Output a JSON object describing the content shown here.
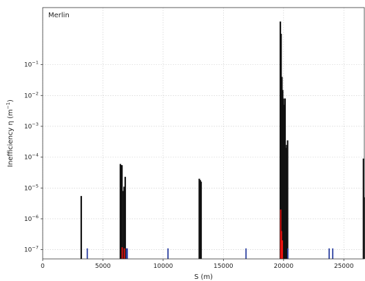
{
  "chart_data": {
    "type": "bar",
    "title": "",
    "annotation": "Merlin",
    "xlabel": "S (m)",
    "ylabel_main": "Inefficiency η (m",
    "ylabel_sup": "−1",
    "ylabel_end": ")",
    "xlim": [
      0,
      26700
    ],
    "ylim_log10": [
      -7.3,
      0.85
    ],
    "yscale": "log",
    "grid": true,
    "x_ticks": [
      0,
      5000,
      10000,
      15000,
      20000,
      25000
    ],
    "x_tick_labels": [
      "0",
      "5000",
      "10000",
      "15000",
      "20000",
      "25000"
    ],
    "y_ticks": [
      {
        "exp": -7,
        "base": "10",
        "sup": "−7"
      },
      {
        "exp": -6,
        "base": "10",
        "sup": "−6"
      },
      {
        "exp": -5,
        "base": "10",
        "sup": "−5"
      },
      {
        "exp": -4,
        "base": "10",
        "sup": "−4"
      },
      {
        "exp": -3,
        "base": "10",
        "sup": "−3"
      },
      {
        "exp": -2,
        "base": "10",
        "sup": "−2"
      },
      {
        "exp": -1,
        "base": "10",
        "sup": "−1"
      }
    ],
    "colors": {
      "black": "#111111",
      "red": "#e8120f",
      "blue": "#2b3fa0",
      "grid": "#c8c8c8",
      "axis": "#333333"
    },
    "series": [
      {
        "color_key": "black",
        "points": [
          {
            "x": 3200,
            "y": 5.5e-06
          },
          {
            "x": 6450,
            "y": 6e-05
          },
          {
            "x": 6520,
            "y": 5.5e-05
          },
          {
            "x": 6580,
            "y": 5.5e-05
          },
          {
            "x": 6700,
            "y": 8e-06
          },
          {
            "x": 6760,
            "y": 1.1e-05
          },
          {
            "x": 6850,
            "y": 2.3e-05
          },
          {
            "x": 13000,
            "y": 2e-05
          },
          {
            "x": 13080,
            "y": 1.8e-05
          },
          {
            "x": 13150,
            "y": 1.6e-05
          },
          {
            "x": 19730,
            "y": 2.5
          },
          {
            "x": 19790,
            "y": 1.0
          },
          {
            "x": 19860,
            "y": 0.04
          },
          {
            "x": 19920,
            "y": 0.015
          },
          {
            "x": 19980,
            "y": 0.008
          },
          {
            "x": 20050,
            "y": 0.005
          },
          {
            "x": 20120,
            "y": 0.008
          },
          {
            "x": 20180,
            "y": 0.0002
          },
          {
            "x": 20260,
            "y": 0.00025
          },
          {
            "x": 20330,
            "y": 0.00035
          },
          {
            "x": 26630,
            "y": 9e-05
          },
          {
            "x": 26690,
            "y": 5e-06
          }
        ]
      },
      {
        "color_key": "red",
        "points": [
          {
            "x": 6600,
            "y": 1.2e-07
          },
          {
            "x": 6780,
            "y": 1.1e-07
          },
          {
            "x": 19760,
            "y": 2e-06
          },
          {
            "x": 19820,
            "y": 4e-07
          },
          {
            "x": 19900,
            "y": 2e-07
          }
        ]
      },
      {
        "color_key": "blue",
        "points": [
          {
            "x": 3700,
            "y": 1.1e-07
          },
          {
            "x": 6960,
            "y": 1.1e-07
          },
          {
            "x": 7020,
            "y": 1.1e-07
          },
          {
            "x": 10400,
            "y": 1.1e-07
          },
          {
            "x": 16880,
            "y": 1.1e-07
          },
          {
            "x": 20350,
            "y": 1.1e-07
          },
          {
            "x": 23780,
            "y": 1.1e-07
          },
          {
            "x": 24080,
            "y": 1.1e-07
          }
        ]
      }
    ]
  }
}
